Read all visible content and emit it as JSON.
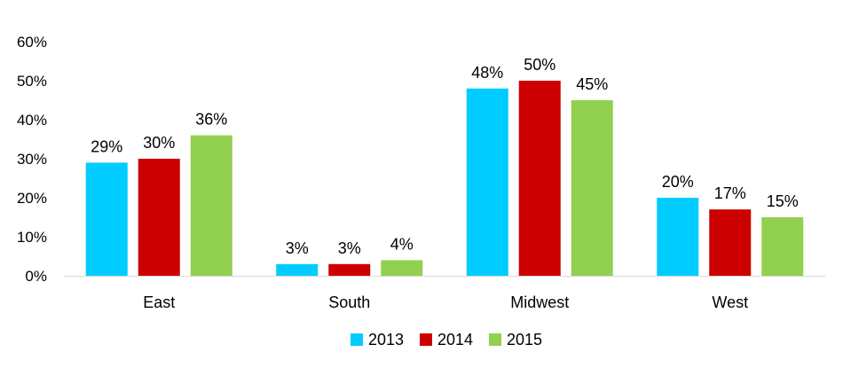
{
  "chart_data": {
    "type": "bar",
    "categories": [
      "East",
      "South",
      "Midwest",
      "West"
    ],
    "series": [
      {
        "name": "2013",
        "color": "#00CCFF",
        "values": [
          29,
          3,
          48,
          20
        ]
      },
      {
        "name": "2014",
        "color": "#CC0000",
        "values": [
          30,
          3,
          50,
          17
        ]
      },
      {
        "name": "2015",
        "color": "#92D050",
        "values": [
          36,
          4,
          45,
          15
        ]
      }
    ],
    "y_ticks": [
      "0%",
      "10%",
      "20%",
      "30%",
      "40%",
      "50%",
      "60%"
    ],
    "ylim": [
      0,
      60
    ],
    "value_suffix": "%",
    "grid": false,
    "legend_position": "bottom"
  }
}
